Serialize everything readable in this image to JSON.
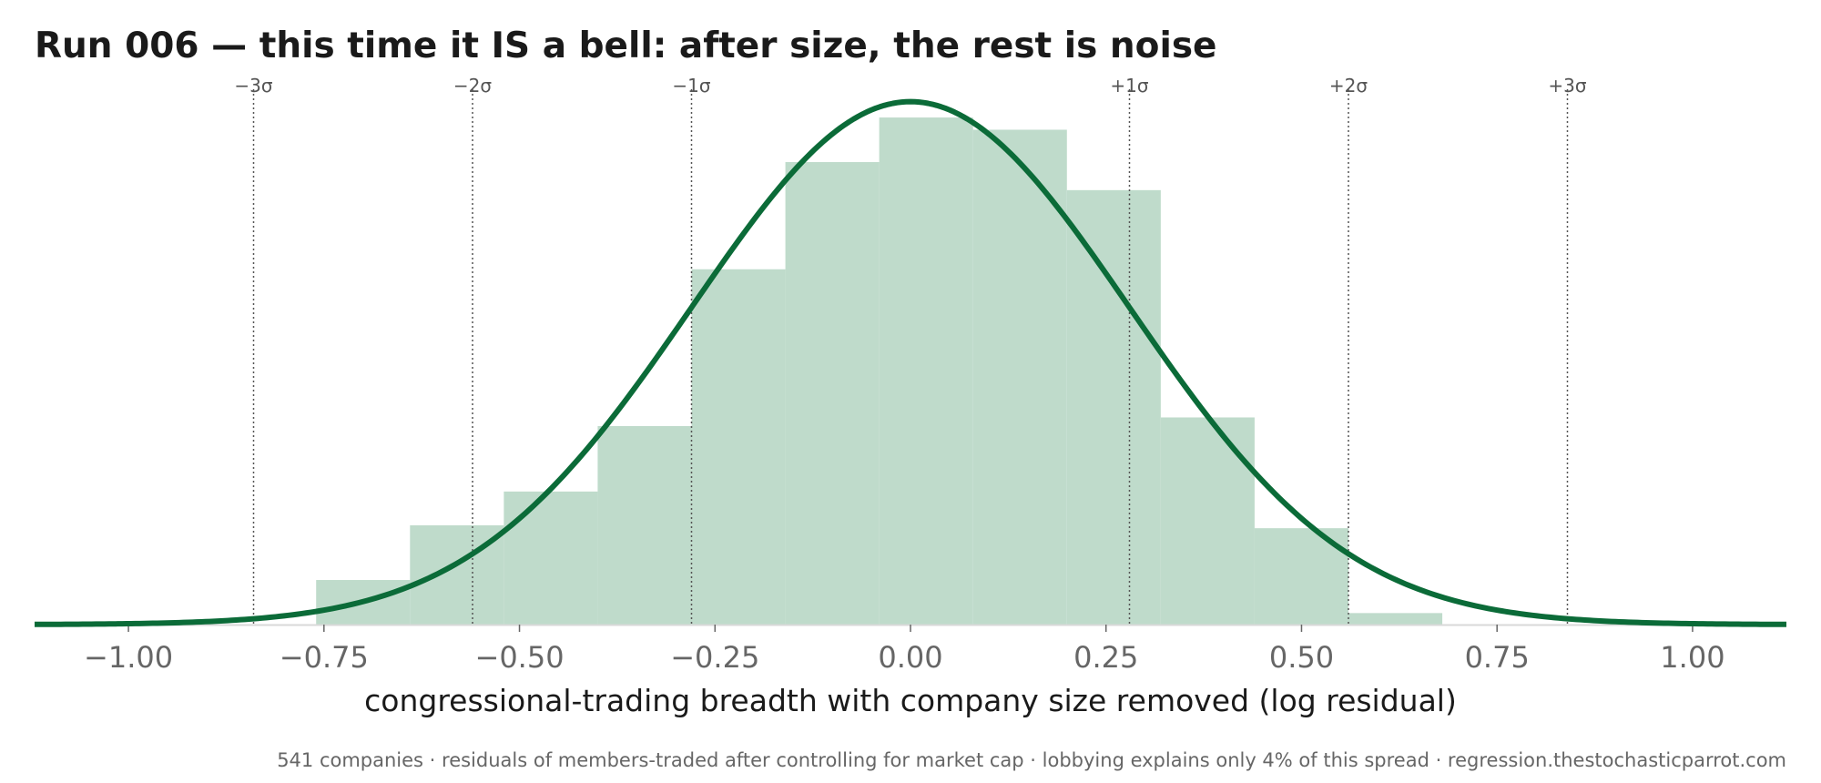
{
  "chart_data": {
    "type": "bar",
    "title": "Run 006 — this time it IS a bell: after size, the rest is noise",
    "xlabel": "congressional-trading breadth with company size removed  (log residual)",
    "ylabel": "",
    "xlim": [
      -1.12,
      1.12
    ],
    "x_ticks": [
      -1.0,
      -0.75,
      -0.5,
      -0.25,
      0.0,
      0.25,
      0.5,
      0.75,
      1.0
    ],
    "x_tick_labels": [
      "−1.00",
      "−0.75",
      "−0.50",
      "−0.25",
      "0.00",
      "0.25",
      "0.50",
      "0.75",
      "1.00"
    ],
    "histogram": {
      "bin_edges": [
        -0.76,
        -0.64,
        -0.52,
        -0.4,
        -0.28,
        -0.16,
        -0.04,
        0.08,
        0.2,
        0.32,
        0.44,
        0.56,
        0.68
      ],
      "values": [
        0.062,
        0.138,
        0.185,
        0.276,
        0.494,
        0.643,
        0.705,
        0.688,
        0.604,
        0.288,
        0.134,
        0.016
      ],
      "color": "#bfdbcb"
    },
    "normal_fit": {
      "mean": 0.0,
      "sd": 0.28,
      "peak": 0.727,
      "color": "#0b6b38"
    },
    "sigma_lines": [
      {
        "x": -0.84,
        "label": "−3σ"
      },
      {
        "x": -0.56,
        "label": "−2σ"
      },
      {
        "x": -0.28,
        "label": "−1σ"
      },
      {
        "x": 0.28,
        "label": "+1σ"
      },
      {
        "x": 0.56,
        "label": "+2σ"
      },
      {
        "x": 0.84,
        "label": "+3σ"
      }
    ],
    "footnote": "541 companies · residuals of members-traded after controlling for market cap · lobbying explains only 4% of this spread · regression.thestochasticparrot.com",
    "grid": false,
    "legend": "none"
  }
}
